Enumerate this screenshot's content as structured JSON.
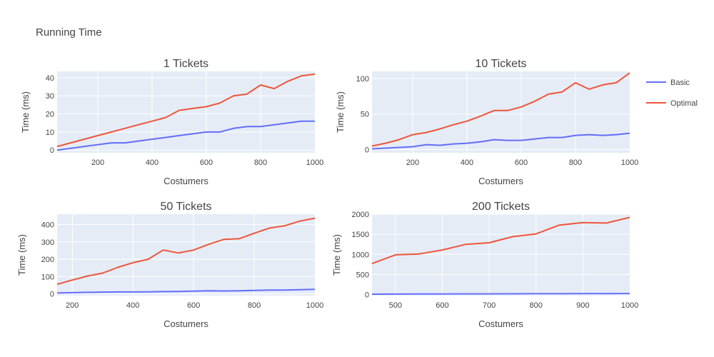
{
  "title": "Running Time",
  "legend": [
    {
      "name": "Basic",
      "color": "#636efa"
    },
    {
      "name": "Optimal",
      "color": "#ef553b"
    }
  ],
  "chart_data": [
    {
      "type": "line",
      "title": "1 Tickets",
      "xlabel": "Costumers",
      "ylabel": "Time (ms)",
      "xlim": [
        50,
        1000
      ],
      "ylim": [
        -1.5,
        43.5
      ],
      "xticks": [
        200,
        400,
        600,
        800,
        1000
      ],
      "yticks": [
        0,
        10,
        20,
        30,
        40
      ],
      "x": [
        50,
        100,
        150,
        200,
        250,
        300,
        350,
        400,
        450,
        500,
        550,
        600,
        650,
        700,
        750,
        800,
        850,
        900,
        950,
        1000
      ],
      "series": [
        {
          "name": "Basic",
          "color": "#636efa",
          "values": [
            0,
            1,
            2,
            3,
            4,
            4,
            5,
            6,
            7,
            8,
            9,
            10,
            10,
            12,
            13,
            13,
            14,
            15,
            16,
            16
          ]
        },
        {
          "name": "Optimal",
          "color": "#ef553b",
          "values": [
            2,
            4,
            6,
            8,
            10,
            12,
            14,
            16,
            18,
            22,
            23,
            24,
            26,
            30,
            31,
            36,
            34,
            38,
            41,
            42
          ]
        }
      ]
    },
    {
      "type": "line",
      "title": "10 Tickets",
      "xlabel": "Costumers",
      "ylabel": "Time (ms)",
      "xlim": [
        50,
        1000
      ],
      "ylim": [
        -4.5,
        110
      ],
      "xticks": [
        200,
        400,
        600,
        800,
        1000
      ],
      "yticks": [
        0,
        50,
        100
      ],
      "x": [
        50,
        100,
        150,
        200,
        250,
        300,
        350,
        400,
        450,
        500,
        550,
        600,
        650,
        700,
        750,
        800,
        850,
        900,
        950,
        1000
      ],
      "series": [
        {
          "name": "Basic",
          "color": "#636efa",
          "values": [
            1,
            2,
            3,
            4,
            7,
            6,
            8,
            9,
            11,
            14,
            13,
            13,
            15,
            17,
            17,
            20,
            21,
            20,
            21,
            23
          ]
        },
        {
          "name": "Optimal",
          "color": "#ef553b",
          "values": [
            5,
            9,
            14,
            21,
            24,
            29,
            35,
            40,
            47,
            55,
            55,
            60,
            68,
            78,
            81,
            94,
            85,
            91,
            94,
            108
          ]
        }
      ]
    },
    {
      "type": "line",
      "title": "50 Tickets",
      "xlabel": "Costumers",
      "ylabel": "Time (ms)",
      "xlim": [
        150,
        1000
      ],
      "ylim": [
        -10,
        460
      ],
      "xticks": [
        200,
        400,
        600,
        800,
        1000
      ],
      "yticks": [
        0,
        100,
        200,
        300,
        400
      ],
      "x": [
        150,
        200,
        250,
        300,
        350,
        400,
        450,
        500,
        550,
        600,
        650,
        700,
        750,
        800,
        850,
        900,
        950,
        1000
      ],
      "series": [
        {
          "name": "Basic",
          "color": "#636efa",
          "values": [
            5,
            7,
            9,
            10,
            11,
            11,
            12,
            13,
            14,
            16,
            18,
            17,
            18,
            20,
            22,
            22,
            24,
            26
          ]
        },
        {
          "name": "Optimal",
          "color": "#ef553b",
          "values": [
            55,
            80,
            103,
            120,
            153,
            180,
            200,
            253,
            236,
            253,
            286,
            315,
            318,
            350,
            380,
            393,
            420,
            437
          ]
        }
      ]
    },
    {
      "type": "line",
      "title": "200 Tickets",
      "xlabel": "Costumers",
      "ylabel": "Time (ms)",
      "xlim": [
        450,
        1000
      ],
      "ylim": [
        -25,
        2000
      ],
      "xticks": [
        500,
        600,
        700,
        800,
        900,
        1000
      ],
      "yticks": [
        0,
        500,
        1000,
        1500,
        2000
      ],
      "x": [
        450,
        500,
        550,
        600,
        650,
        700,
        750,
        800,
        850,
        900,
        950,
        1000
      ],
      "series": [
        {
          "name": "Basic",
          "color": "#636efa",
          "values": [
            10,
            12,
            14,
            15,
            17,
            18,
            20,
            21,
            22,
            24,
            25,
            27
          ]
        },
        {
          "name": "Optimal",
          "color": "#ef553b",
          "values": [
            770,
            990,
            1010,
            1110,
            1250,
            1290,
            1440,
            1510,
            1730,
            1790,
            1780,
            1920
          ]
        }
      ]
    }
  ]
}
